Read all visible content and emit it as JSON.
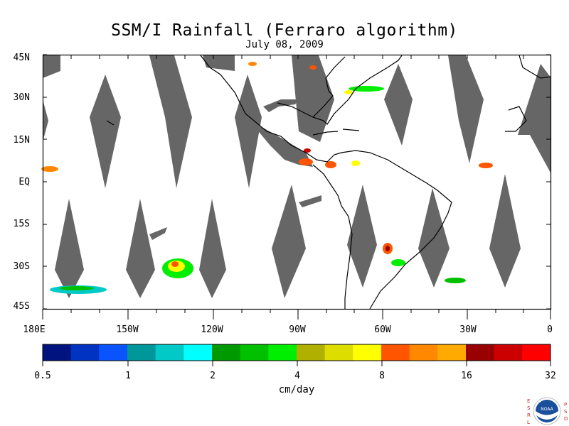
{
  "title": "SSM/I Rainfall (Ferraro algorithm)",
  "date": "July 08, 2009",
  "lat_labels": [
    "45N",
    "30N",
    "15N",
    "EQ",
    "15S",
    "30S",
    "45S"
  ],
  "lon_labels": [
    "180E",
    "150W",
    "120W",
    "90W",
    "60W",
    "30W",
    "0"
  ],
  "colorbar": {
    "colors": [
      "#00137e",
      "#0033c2",
      "#0a54ff",
      "#00979b",
      "#00c9c8",
      "#00ffff",
      "#009900",
      "#00c000",
      "#00ee00",
      "#b0b000",
      "#dddd00",
      "#ffff00",
      "#ff5500",
      "#ff8800",
      "#ffaa00",
      "#990000",
      "#cc0000",
      "#ff0000"
    ],
    "labels": [
      "0.5",
      "1",
      "2",
      "4",
      "8",
      "16",
      "32"
    ],
    "units": "cm/day"
  },
  "logo": {
    "left_text": "ESRL",
    "right_text": "PSD",
    "emblem_text": "NOAA"
  }
}
